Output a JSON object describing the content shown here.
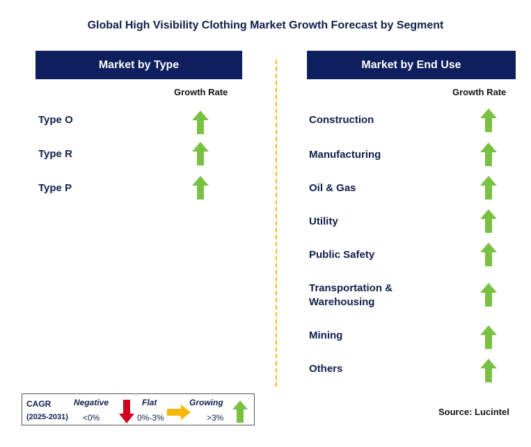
{
  "title": "Global High Visibility Clothing Market Growth Forecast by Segment",
  "left_panel": {
    "header": "Market by Type",
    "growth_label": "Growth Rate",
    "items": [
      {
        "label": "Type O",
        "trend": "growing"
      },
      {
        "label": "Type R",
        "trend": "growing"
      },
      {
        "label": "Type P",
        "trend": "growing"
      }
    ]
  },
  "right_panel": {
    "header": "Market by End Use",
    "growth_label": "Growth Rate",
    "items": [
      {
        "label": "Construction",
        "trend": "growing"
      },
      {
        "label": "Manufacturing",
        "trend": "growing"
      },
      {
        "label": "Oil & Gas",
        "trend": "growing"
      },
      {
        "label": "Utility",
        "trend": "growing"
      },
      {
        "label": "Public Safety",
        "trend": "growing"
      },
      {
        "label": "Transportation &\nWarehousing",
        "trend": "growing"
      },
      {
        "label": "Mining",
        "trend": "growing"
      },
      {
        "label": "Others",
        "trend": "growing"
      }
    ]
  },
  "legend": {
    "cagr_label": "CAGR",
    "period": "(2025-2031)",
    "negative_label": "Negative",
    "negative_range": "<0%",
    "flat_label": "Flat",
    "flat_range": "0%-3%",
    "growing_label": "Growing",
    "growing_range": ">3%"
  },
  "source": "Source: Lucintel",
  "colors": {
    "header_bg": "#0d1f5c",
    "growing": "#7ac143",
    "negative": "#d0021b",
    "flat": "#f5b800",
    "divider": "#f5b800"
  }
}
